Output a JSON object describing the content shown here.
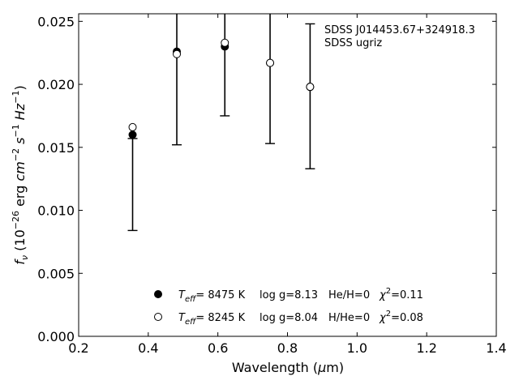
{
  "chart_data": {
    "type": "scatter",
    "xlabel_main": "Wavelength (",
    "xlabel_mu": "μ",
    "xlabel_tail": "m)",
    "ylabel_f": "f",
    "ylabel_nu": "ν",
    "ylabel_rest1": " (10",
    "ylabel_exp1": "−26",
    "ylabel_rest2": " erg ",
    "ylabel_cm": "cm",
    "ylabel_exp2": "−2",
    "ylabel_s": " s",
    "ylabel_exp3": "−1",
    "ylabel_hz": " Hz",
    "ylabel_exp4": "−1",
    "ylabel_close": ")",
    "xlim": [
      0.2,
      1.4
    ],
    "ylim": [
      0.0,
      0.0256
    ],
    "xticks": [
      "0.2",
      "0.4",
      "0.6",
      "0.8",
      "1.0",
      "1.2",
      "1.4"
    ],
    "yticks": [
      "0.000",
      "0.005",
      "0.010",
      "0.015",
      "0.020",
      "0.025"
    ],
    "annotation": [
      "SDSS J014453.67+324918.3",
      "SDSS ugriz"
    ],
    "legend_placement": "bottom-center",
    "observed": {
      "x": [
        0.355,
        0.482,
        0.62,
        0.75,
        0.865
      ],
      "y": [
        0.016,
        0.0226,
        0.023,
        0.0217,
        0.0198
      ],
      "yerr_low": [
        0.0084,
        0.0152,
        0.0175,
        0.0153,
        0.0133
      ],
      "yerr_high": [
        0.0157,
        0.03,
        0.029,
        0.028,
        0.0248
      ]
    },
    "series": [
      {
        "marker": "filled-circle",
        "legend": {
          "T": "T",
          "eff": "eff",
          "temp": "=  8475 K",
          "logg": "log g=8.13",
          "comp": "He/H=0",
          "chi": "χ",
          "two": "2",
          "chival": "=0.11"
        },
        "x": [
          0.355,
          0.482,
          0.62,
          0.75,
          0.865
        ],
        "y": [
          0.016,
          0.0226,
          0.023,
          0.0217,
          0.0198
        ]
      },
      {
        "marker": "open-circle",
        "legend": {
          "T": "T",
          "eff": "eff",
          "temp": "=  8245 K",
          "logg": "log g=8.04",
          "comp": "H/He=0",
          "chi": "χ",
          "two": "2",
          "chival": "=0.08"
        },
        "x": [
          0.355,
          0.482,
          0.62,
          0.75,
          0.865
        ],
        "y": [
          0.0166,
          0.0224,
          0.0233,
          0.0217,
          0.0198
        ]
      }
    ]
  }
}
